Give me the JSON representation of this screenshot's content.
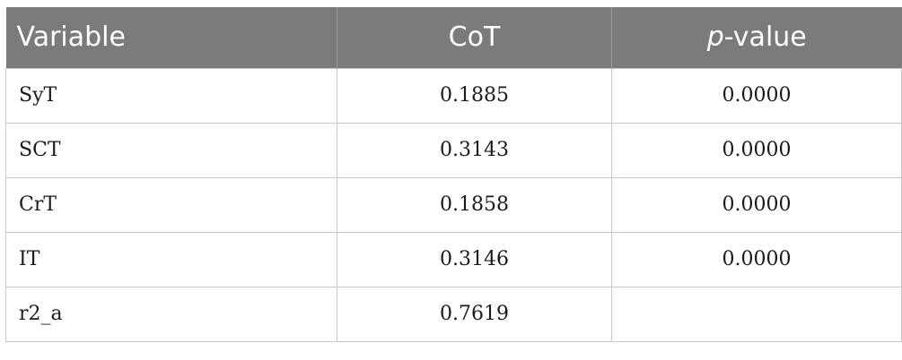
{
  "table": {
    "headers": {
      "variable": "Variable",
      "cot": "CoT",
      "p_italic": "p",
      "p_rest": "-value"
    },
    "rows": [
      {
        "variable": "SyT",
        "cot": "0.1885",
        "p_value": "0.0000"
      },
      {
        "variable": "SCT",
        "cot": "0.3143",
        "p_value": "0.0000"
      },
      {
        "variable": "CrT",
        "cot": "0.1858",
        "p_value": "0.0000"
      },
      {
        "variable": "IT",
        "cot": "0.3146",
        "p_value": "0.0000"
      },
      {
        "variable": "r2_a",
        "cot": "0.7619",
        "p_value": ""
      }
    ]
  },
  "colors": {
    "header_bg": "#7b7b7b",
    "header_text": "#ffffff",
    "border": "#c8c8c8"
  }
}
